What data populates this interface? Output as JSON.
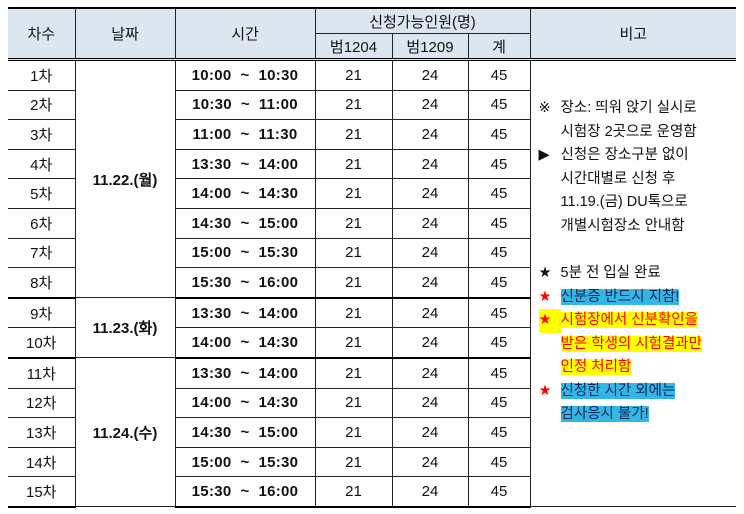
{
  "headers": {
    "round": "차수",
    "date": "날짜",
    "time": "시간",
    "capacity": "신청가능인원(명)",
    "room1": "범1204",
    "room2": "범1209",
    "total": "계",
    "note": "비고"
  },
  "groups": [
    {
      "date": "11.22.(월)",
      "rows": [
        {
          "round": "1차",
          "time": "10:00  ~  10:30",
          "room1": "21",
          "room2": "24",
          "total": "45"
        },
        {
          "round": "2차",
          "time": "10:30  ~  11:00",
          "room1": "21",
          "room2": "24",
          "total": "45"
        },
        {
          "round": "3차",
          "time": "11:00  ~  11:30",
          "room1": "21",
          "room2": "24",
          "total": "45"
        },
        {
          "round": "4차",
          "time": "13:30  ~  14:00",
          "room1": "21",
          "room2": "24",
          "total": "45"
        },
        {
          "round": "5차",
          "time": "14:00  ~  14:30",
          "room1": "21",
          "room2": "24",
          "total": "45"
        },
        {
          "round": "6차",
          "time": "14:30  ~  15:00",
          "room1": "21",
          "room2": "24",
          "total": "45"
        },
        {
          "round": "7차",
          "time": "15:00  ~  15:30",
          "room1": "21",
          "room2": "24",
          "total": "45"
        },
        {
          "round": "8차",
          "time": "15:30  ~  16:00",
          "room1": "21",
          "room2": "24",
          "total": "45"
        }
      ]
    },
    {
      "date": "11.23.(화)",
      "rows": [
        {
          "round": "9차",
          "time": "13:30  ~  14:00",
          "room1": "21",
          "room2": "24",
          "total": "45"
        },
        {
          "round": "10차",
          "time": "14:00  ~  14:30",
          "room1": "21",
          "room2": "24",
          "total": "45"
        }
      ]
    },
    {
      "date": "11.24.(수)",
      "rows": [
        {
          "round": "11차",
          "time": "13:30  ~  14:00",
          "room1": "21",
          "room2": "24",
          "total": "45"
        },
        {
          "round": "12차",
          "time": "14:00  ~  14:30",
          "room1": "21",
          "room2": "24",
          "total": "45"
        },
        {
          "round": "13차",
          "time": "14:30  ~  15:00",
          "room1": "21",
          "room2": "24",
          "total": "45"
        },
        {
          "round": "14차",
          "time": "15:00  ~  15:30",
          "room1": "21",
          "room2": "24",
          "total": "45"
        },
        {
          "round": "15차",
          "time": "15:30  ~  16:00",
          "room1": "21",
          "room2": "24",
          "total": "45"
        }
      ]
    }
  ],
  "notes": {
    "mark_ref": "※",
    "mark_arrow": "▶",
    "mark_star": "★",
    "n1a": "장소: 띄워 앉기 실시로",
    "n1b": "시험장 2곳으로 운영함",
    "n2a": "신청은 장소구분 없이",
    "n2b": "시간대별로 신청 후",
    "n2c": "11.19.(금) DU톡으로",
    "n2d": "개별시험장소 안내함",
    "n3": "5분 전 입실 완료",
    "n4": "신분증 반드시 지참!",
    "n5a": "시험장에서 신분확인을",
    "n5b": "받은 학생의 시험결과만",
    "n5c": "인정 처리함",
    "n6a": "신청한 시간 외에는",
    "n6b": "검사응시 불가!",
    "colors": {
      "header_bg": "#dce6f1",
      "highlight_blue": "#33b5e5",
      "highlight_yellow": "#ffff00",
      "red": "#ff0000"
    }
  }
}
